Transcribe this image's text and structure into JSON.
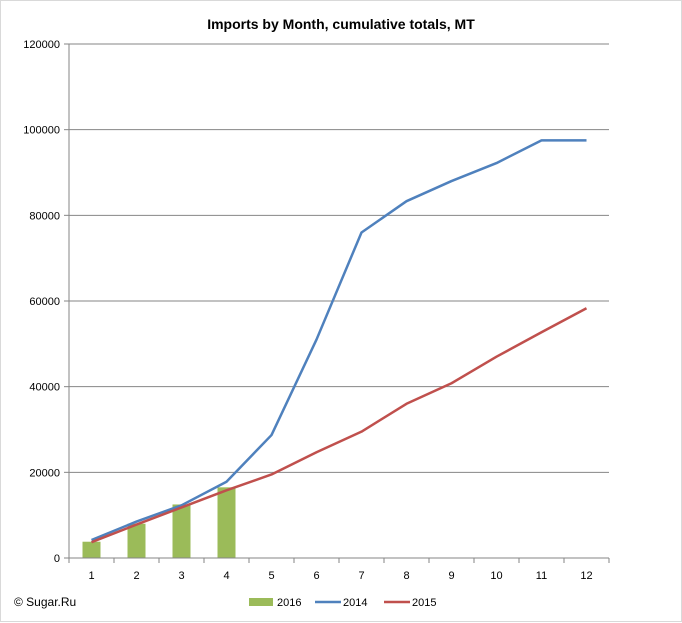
{
  "chart_data": {
    "type": "bar+line",
    "title": "Imports by Month, cumulative totals, MT",
    "xlabel": "",
    "ylabel": "",
    "categories": [
      "1",
      "2",
      "3",
      "4",
      "5",
      "6",
      "7",
      "8",
      "9",
      "10",
      "11",
      "12"
    ],
    "ylim": [
      0,
      120000
    ],
    "yticks": [
      "0",
      "20000",
      "40000",
      "60000",
      "80000",
      "100000",
      "120000"
    ],
    "grid": true,
    "legend_position": "bottom",
    "series": [
      {
        "name": "2016",
        "kind": "bar",
        "color": "#9bbb59",
        "values": [
          3800,
          8000,
          12500,
          16500,
          null,
          null,
          null,
          null,
          null,
          null,
          null,
          null
        ]
      },
      {
        "name": "2014",
        "kind": "line",
        "color": "#4f81bd",
        "values": [
          4200,
          8500,
          12300,
          17800,
          28700,
          51000,
          76000,
          83300,
          88000,
          92200,
          97500,
          97500
        ]
      },
      {
        "name": "2015",
        "kind": "line",
        "color": "#c0504d",
        "values": [
          3700,
          7800,
          11800,
          15800,
          19500,
          24700,
          29500,
          36000,
          40800,
          47000,
          52700,
          58300
        ]
      }
    ]
  },
  "footer": {
    "copyright": "© Sugar.Ru"
  }
}
